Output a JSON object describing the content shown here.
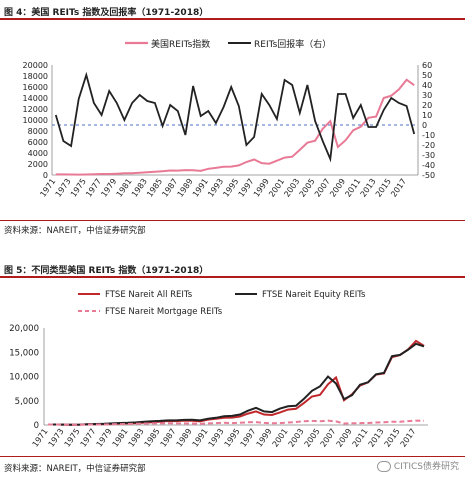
{
  "figure1": {
    "title": "图 4：美国 REITs 指数及回报率（1971-2018）",
    "source": "资料来源：NAREIT，中信证券研究部"
  },
  "figure2": {
    "title": "图 5：不同类型美国 REITs 指数（1971-2018）",
    "source": "资料来源：NAREIT，中信证券研究部"
  },
  "watermark": "CITICS债券研究",
  "chart_data": [
    {
      "type": "line",
      "x": [
        1971,
        1972,
        1973,
        1974,
        1975,
        1976,
        1977,
        1978,
        1979,
        1980,
        1981,
        1982,
        1983,
        1984,
        1985,
        1986,
        1987,
        1988,
        1989,
        1990,
        1991,
        1992,
        1993,
        1994,
        1995,
        1996,
        1997,
        1998,
        1999,
        2000,
        2001,
        2002,
        2003,
        2004,
        2005,
        2006,
        2007,
        2008,
        2009,
        2010,
        2011,
        2012,
        2013,
        2014,
        2015,
        2016,
        2017,
        2018
      ],
      "x_tick_labels": [
        "1971",
        "1973",
        "1975",
        "1977",
        "1979",
        "1981",
        "1983",
        "1985",
        "1987",
        "1989",
        "1991",
        "1993",
        "1995",
        "1997",
        "1999",
        "2001",
        "2003",
        "2005",
        "2007",
        "2009",
        "2011",
        "2013",
        "2015",
        "2017"
      ],
      "series": [
        {
          "name": "美国REITs指数",
          "axis": "left",
          "color": "#e87a96",
          "values": [
            100,
            110,
            90,
            65,
            90,
            135,
            175,
            190,
            240,
            310,
            330,
            400,
            490,
            580,
            700,
            820,
            800,
            900,
            880,
            750,
            1120,
            1290,
            1500,
            1520,
            1750,
            2360,
            2810,
            2160,
            2060,
            2600,
            3170,
            3330,
            4560,
            5880,
            6230,
            8400,
            9800,
            5100,
            6320,
            8130,
            8790,
            10400,
            10620,
            14000,
            14420,
            15560,
            17330,
            16320
          ]
        },
        {
          "name": "REITs回报率（右）",
          "axis": "right",
          "color": "#222222",
          "values": [
            10,
            -16,
            -21,
            26,
            50,
            22,
            10,
            34,
            22,
            5,
            22,
            30,
            24,
            22,
            -1,
            20,
            14,
            -10,
            39,
            9,
            14,
            2,
            18,
            38,
            19,
            -20,
            -12,
            31,
            20,
            6,
            45,
            40,
            12,
            40,
            4,
            -16,
            -34,
            31,
            31,
            7,
            20,
            -2,
            -2,
            15,
            27,
            22,
            19,
            -9
          ]
        }
      ],
      "y_left": {
        "lim": [
          0,
          20000
        ],
        "ticks": [
          "0",
          "2000",
          "4000",
          "6000",
          "8000",
          "10000",
          "12000",
          "14000",
          "16000",
          "18000",
          "20000"
        ]
      },
      "y_right": {
        "lim": [
          -50,
          60
        ],
        "ticks": [
          "-50",
          "-40",
          "-30",
          "-20",
          "-10",
          "0",
          "10",
          "20",
          "30",
          "40",
          "50",
          "60"
        ],
        "reference_line": 0,
        "reference_line_color": "#4d72c4"
      },
      "legend_position": "top"
    },
    {
      "type": "line",
      "x": [
        1971,
        1972,
        1973,
        1974,
        1975,
        1976,
        1977,
        1978,
        1979,
        1980,
        1981,
        1982,
        1983,
        1984,
        1985,
        1986,
        1987,
        1988,
        1989,
        1990,
        1991,
        1992,
        1993,
        1994,
        1995,
        1996,
        1997,
        1998,
        1999,
        2000,
        2001,
        2002,
        2003,
        2004,
        2005,
        2006,
        2007,
        2008,
        2009,
        2010,
        2011,
        2012,
        2013,
        2014,
        2015,
        2016,
        2017,
        2018
      ],
      "x_tick_labels": [
        "1971",
        "1973",
        "1975",
        "1977",
        "1979",
        "1981",
        "1983",
        "1985",
        "1987",
        "1989",
        "1991",
        "1993",
        "1995",
        "1997",
        "1999",
        "2001",
        "2003",
        "2005",
        "2007",
        "2009",
        "2011",
        "2013",
        "2015",
        "2017"
      ],
      "series": [
        {
          "name": "FTSE Nareit All REITs",
          "color": "#c0282c",
          "dash": "solid",
          "values": [
            100,
            110,
            90,
            65,
            90,
            135,
            175,
            190,
            240,
            310,
            330,
            400,
            490,
            580,
            700,
            820,
            800,
            900,
            880,
            750,
            1120,
            1290,
            1500,
            1520,
            1750,
            2360,
            2810,
            2160,
            2060,
            2600,
            3170,
            3330,
            4560,
            5880,
            6230,
            8400,
            9800,
            5100,
            6320,
            8130,
            8790,
            10400,
            10620,
            14000,
            14420,
            15560,
            17330,
            16320
          ]
        },
        {
          "name": "FTSE Nareit Equity REITs",
          "color": "#222222",
          "dash": "solid",
          "values": [
            100,
            110,
            90,
            65,
            90,
            140,
            200,
            250,
            330,
            420,
            450,
            530,
            650,
            780,
            850,
            950,
            940,
            1060,
            1100,
            950,
            1300,
            1480,
            1800,
            1870,
            2170,
            2940,
            3540,
            2800,
            2650,
            3390,
            3850,
            3950,
            5400,
            7050,
            7950,
            10000,
            8550,
            5350,
            6150,
            8300,
            8800,
            10450,
            10750,
            14200,
            14450,
            15500,
            16750,
            16200
          ]
        },
        {
          "name": "FTSE Nareit Mortgage REITs",
          "color": "#e87a96",
          "dash": "dashed",
          "values": [
            100,
            105,
            85,
            55,
            60,
            80,
            95,
            110,
            140,
            190,
            200,
            250,
            300,
            330,
            330,
            360,
            330,
            320,
            300,
            250,
            340,
            400,
            450,
            400,
            450,
            550,
            600,
            430,
            350,
            400,
            510,
            620,
            780,
            850,
            760,
            900,
            750,
            300,
            350,
            400,
            420,
            520,
            560,
            680,
            660,
            800,
            900,
            860
          ]
        }
      ],
      "y": {
        "lim": [
          0,
          20000
        ],
        "ticks": [
          "0",
          "5,000",
          "10,000",
          "15,000",
          "20,000"
        ]
      },
      "legend_position": "top"
    }
  ]
}
